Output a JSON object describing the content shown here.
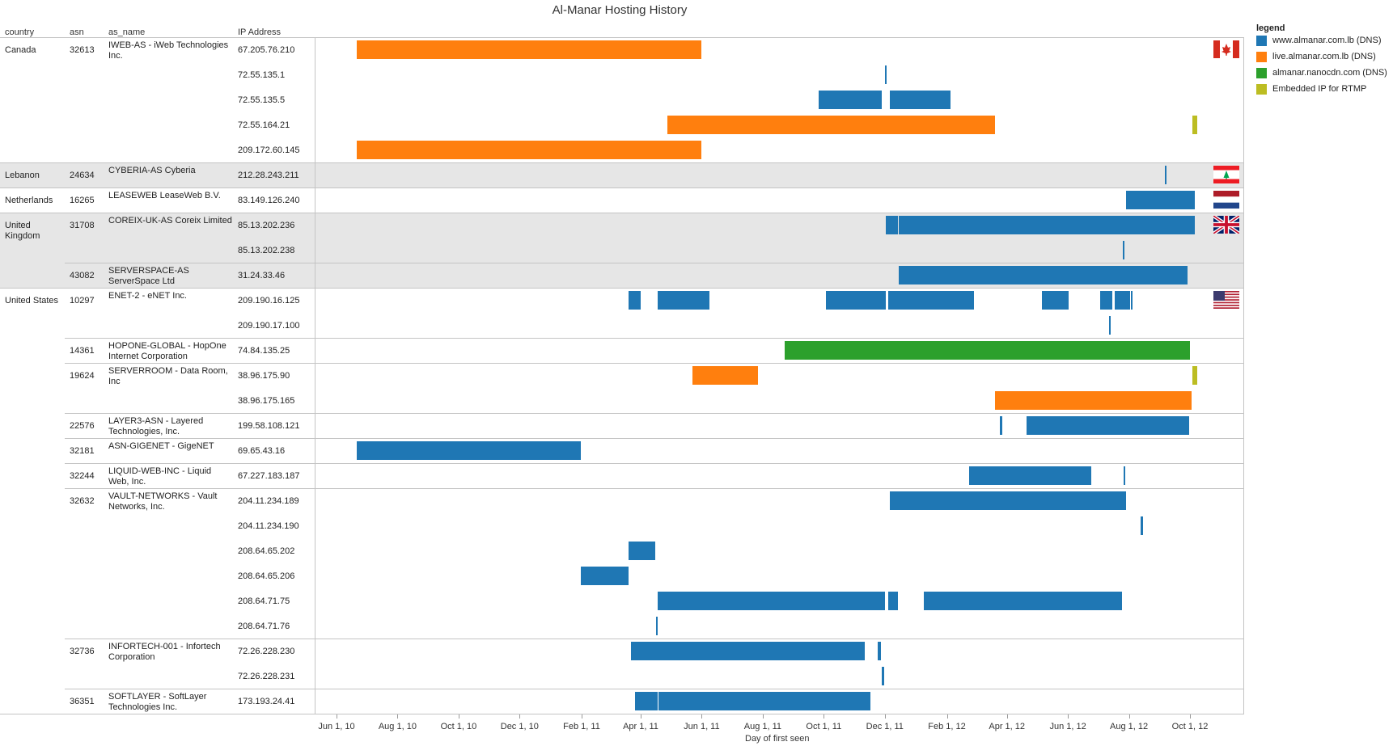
{
  "chart_data": {
    "type": "gantt",
    "title": "Al-Manar Hosting History",
    "xlabel": "Day of first seen",
    "columns": [
      "country",
      "asn",
      "as_name",
      "IP Address"
    ],
    "x_ticks": [
      "Jun 1, 10",
      "Aug 1, 10",
      "Oct 1, 10",
      "Dec 1, 10",
      "Feb 1, 11",
      "Apr 1, 11",
      "Jun 1, 11",
      "Aug 1, 11",
      "Oct 1, 11",
      "Dec 1, 11",
      "Feb 1, 12",
      "Apr 1, 12",
      "Jun 1, 12",
      "Aug 1, 12",
      "Oct 1, 12"
    ],
    "legend_title": "legend",
    "series": [
      {
        "name": "www.almanar.com.lb (DNS)",
        "color": "#1f77b4"
      },
      {
        "name": "live.almanar.com.lb (DNS)",
        "color": "#ff7f0e"
      },
      {
        "name": "almanar.nanocdn.com (DNS)",
        "color": "#2ca02c"
      },
      {
        "name": "Embedded IP for RTMP",
        "color": "#bcbd22"
      }
    ],
    "rows": [
      {
        "country": "Canada",
        "asn": "32613",
        "as_name": "IWEB-AS - iWeb Technologies Inc.",
        "ip": "67.205.76.210",
        "bars": [
          {
            "s": 1,
            "start": "2010-06-21",
            "end": "2011-06-01"
          }
        ]
      },
      {
        "ip": "72.55.135.1",
        "bars": [
          {
            "s": 0,
            "start": "2011-12-01",
            "end": "2011-12-02"
          }
        ]
      },
      {
        "ip": "72.55.135.5",
        "bars": [
          {
            "s": 0,
            "start": "2011-09-26",
            "end": "2011-11-28"
          },
          {
            "s": 0,
            "start": "2011-12-06",
            "end": "2012-02-05"
          }
        ]
      },
      {
        "ip": "72.55.164.21",
        "bars": [
          {
            "s": 1,
            "start": "2011-04-28",
            "end": "2012-03-20"
          },
          {
            "s": 3,
            "start": "2012-10-03",
            "end": "2012-10-08"
          }
        ]
      },
      {
        "ip": "209.172.60.145",
        "bars": [
          {
            "s": 1,
            "start": "2010-06-21",
            "end": "2011-06-01"
          }
        ]
      },
      {
        "country": "Lebanon",
        "asn": "24634",
        "as_name": "CYBERIA-AS Cyberia",
        "ip": "212.28.243.211",
        "band": true,
        "bars": [
          {
            "s": 0,
            "start": "2012-09-06",
            "end": "2012-09-07"
          }
        ]
      },
      {
        "country": "Netherlands",
        "asn": "16265",
        "as_name": "LEASEWEB LeaseWeb B.V.",
        "ip": "83.149.126.240",
        "bars": [
          {
            "s": 0,
            "start": "2012-07-29",
            "end": "2012-10-06"
          }
        ]
      },
      {
        "country": "United Kingdom",
        "asn": "31708",
        "as_name": "COREIX-UK-AS Coreix Limited",
        "ip": "85.13.202.236",
        "band": true,
        "bars": [
          {
            "s": 0,
            "start": "2011-12-02",
            "end": "2011-12-14"
          },
          {
            "s": 0,
            "start": "2011-12-15",
            "end": "2012-10-06"
          }
        ]
      },
      {
        "ip": "85.13.202.238",
        "band": true,
        "bars": [
          {
            "s": 0,
            "start": "2012-07-26",
            "end": "2012-07-27"
          }
        ]
      },
      {
        "asn": "43082",
        "as_name": "SERVERSPACE-AS ServerSpace Ltd",
        "ip": "31.24.33.46",
        "band": true,
        "bars": [
          {
            "s": 0,
            "start": "2011-12-15",
            "end": "2012-09-29"
          }
        ]
      },
      {
        "country": "United States",
        "asn": "10297",
        "as_name": "ENET-2 - eNET Inc.",
        "ip": "209.190.16.125",
        "bars": [
          {
            "s": 0,
            "start": "2011-03-20",
            "end": "2011-04-01"
          },
          {
            "s": 0,
            "start": "2011-04-18",
            "end": "2011-06-09"
          },
          {
            "s": 0,
            "start": "2011-10-03",
            "end": "2011-12-02"
          },
          {
            "s": 0,
            "start": "2011-12-04",
            "end": "2012-02-28"
          },
          {
            "s": 0,
            "start": "2012-05-06",
            "end": "2012-06-02"
          },
          {
            "s": 0,
            "start": "2012-07-03",
            "end": "2012-07-04"
          },
          {
            "s": 0,
            "start": "2012-07-05",
            "end": "2012-07-15"
          },
          {
            "s": 0,
            "start": "2012-07-18",
            "end": "2012-08-02"
          },
          {
            "s": 0,
            "start": "2012-08-03",
            "end": "2012-08-04"
          }
        ]
      },
      {
        "ip": "209.190.17.100",
        "bars": [
          {
            "s": 0,
            "start": "2012-07-12",
            "end": "2012-07-13"
          }
        ]
      },
      {
        "asn": "14361",
        "as_name": "HOPONE-GLOBAL - HopOne Internet Corporation",
        "ip": "74.84.135.25",
        "bars": [
          {
            "s": 2,
            "start": "2011-08-23",
            "end": "2012-10-01"
          }
        ]
      },
      {
        "asn": "19624",
        "as_name": "SERVERROOM - Data Room, Inc",
        "ip": "38.96.175.90",
        "bars": [
          {
            "s": 1,
            "start": "2011-05-23",
            "end": "2011-07-27"
          },
          {
            "s": 3,
            "start": "2012-10-03",
            "end": "2012-10-08"
          }
        ]
      },
      {
        "ip": "38.96.175.165",
        "bars": [
          {
            "s": 1,
            "start": "2012-03-20",
            "end": "2012-10-03"
          }
        ]
      },
      {
        "asn": "22576",
        "as_name": "LAYER3-ASN - Layered Technologies, Inc.",
        "ip": "199.58.108.121",
        "bars": [
          {
            "s": 0,
            "start": "2012-03-25",
            "end": "2012-03-27"
          },
          {
            "s": 0,
            "start": "2012-04-21",
            "end": "2012-09-30"
          }
        ]
      },
      {
        "asn": "32181",
        "as_name": "ASN-GIGENET - GigeNET",
        "ip": "69.65.43.16",
        "bars": [
          {
            "s": 0,
            "start": "2010-06-21",
            "end": "2011-01-31"
          }
        ]
      },
      {
        "asn": "32244",
        "as_name": "LIQUID-WEB-INC - Liquid Web, Inc.",
        "ip": "67.227.183.187",
        "bars": [
          {
            "s": 0,
            "start": "2012-02-23",
            "end": "2012-06-24"
          },
          {
            "s": 0,
            "start": "2012-07-27",
            "end": "2012-07-28"
          }
        ]
      },
      {
        "asn": "32632",
        "as_name": "VAULT-NETWORKS - Vault Networks, Inc.",
        "ip": "204.11.234.189",
        "bars": [
          {
            "s": 0,
            "start": "2011-12-06",
            "end": "2012-07-29"
          }
        ]
      },
      {
        "ip": "204.11.234.190",
        "bars": [
          {
            "s": 0,
            "start": "2012-08-13",
            "end": "2012-08-15"
          }
        ]
      },
      {
        "ip": "208.64.65.202",
        "bars": [
          {
            "s": 0,
            "start": "2011-03-20",
            "end": "2011-04-16"
          }
        ]
      },
      {
        "ip": "208.64.65.206",
        "bars": [
          {
            "s": 0,
            "start": "2011-01-31",
            "end": "2011-03-20"
          }
        ]
      },
      {
        "ip": "208.64.71.75",
        "bars": [
          {
            "s": 0,
            "start": "2011-04-18",
            "end": "2011-12-01"
          },
          {
            "s": 0,
            "start": "2011-12-04",
            "end": "2011-12-14"
          },
          {
            "s": 0,
            "start": "2012-01-09",
            "end": "2012-07-25"
          }
        ]
      },
      {
        "ip": "208.64.71.76",
        "bars": [
          {
            "s": 0,
            "start": "2011-04-16",
            "end": "2011-04-18"
          }
        ]
      },
      {
        "asn": "32736",
        "as_name": "INFORTECH-001 - Infortech Corporation",
        "ip": "72.26.228.230",
        "bars": [
          {
            "s": 0,
            "start": "2011-03-22",
            "end": "2011-11-11"
          },
          {
            "s": 0,
            "start": "2011-11-24",
            "end": "2011-11-27"
          }
        ]
      },
      {
        "ip": "72.26.228.231",
        "bars": [
          {
            "s": 0,
            "start": "2011-11-28",
            "end": "2011-11-30"
          }
        ]
      },
      {
        "asn": "36351",
        "as_name": "SOFTLAYER - SoftLayer Technologies Inc.",
        "ip": "173.193.24.41",
        "bars": [
          {
            "s": 0,
            "start": "2011-03-26",
            "end": "2011-04-18"
          },
          {
            "s": 0,
            "start": "2011-04-19",
            "end": "2011-11-17"
          }
        ]
      }
    ]
  },
  "flags": [
    {
      "icon": "canada-flag-icon",
      "row": 0
    },
    {
      "icon": "lebanon-flag-icon",
      "row": 5
    },
    {
      "icon": "netherlands-flag-icon",
      "row": 6
    },
    {
      "icon": "uk-flag-icon",
      "row": 7
    },
    {
      "icon": "usa-flag-icon",
      "row": 10
    }
  ]
}
